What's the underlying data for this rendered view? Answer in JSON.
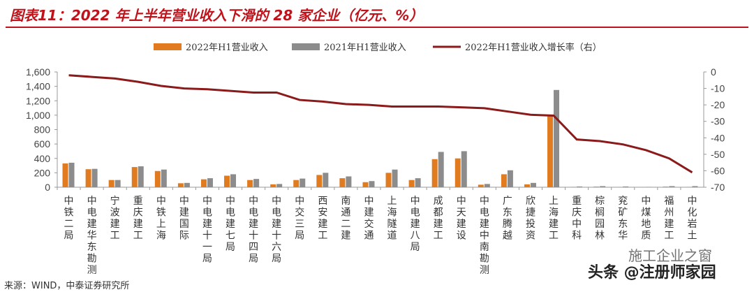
{
  "title": "图表11：2022 年上半年营业收入下滑的 28 家企业（亿元、%）",
  "source": "来源：WIND，中泰证券研究所",
  "watermarks": [
    "施工企业之窗",
    "头条 @注册师家园"
  ],
  "chart_data": {
    "type": "bar+line",
    "categories": [
      "中铁二局",
      "中电建华东勘测",
      "宁波建工",
      "重庆建工",
      "中铁上海",
      "中建国际",
      "中电建十一局",
      "中电建七局",
      "中电建十四局",
      "中电建十六局",
      "中交三局",
      "西安建工",
      "南通二建",
      "中建交通",
      "上海隧道",
      "中电建八局",
      "成都建工",
      "中天建设",
      "中电建中南勘测",
      "广东腾越",
      "欣捷投资",
      "上海建工",
      "重庆中科",
      "棕榈园林",
      "兖矿东华",
      "中煤地质",
      "福州建工",
      "中化岩土"
    ],
    "series": [
      {
        "name": "2022年H1营业收入",
        "type": "bar",
        "axis": "left",
        "color": "#e07b20",
        "values": [
          330,
          250,
          100,
          280,
          225,
          55,
          110,
          160,
          100,
          40,
          100,
          170,
          125,
          70,
          200,
          100,
          390,
          400,
          35,
          180,
          40,
          1000,
          5,
          8,
          3,
          2,
          8,
          5
        ]
      },
      {
        "name": "2021年H1营业收入",
        "type": "bar",
        "axis": "left",
        "color": "#8c8c8c",
        "values": [
          340,
          255,
          100,
          290,
          245,
          60,
          125,
          180,
          115,
          45,
          120,
          200,
          150,
          85,
          245,
          125,
          490,
          500,
          45,
          235,
          60,
          1350,
          10,
          15,
          10,
          5,
          15,
          15
        ]
      },
      {
        "name": "2022年H1营业收入增长率（右）",
        "type": "line",
        "axis": "right",
        "color": "#8b1a1a",
        "values": [
          -2,
          -3,
          -4,
          -6,
          -8.5,
          -10,
          -10.5,
          -11.5,
          -12.5,
          -12.5,
          -17,
          -18,
          -19.5,
          -20,
          -21,
          -21,
          -21,
          -21.5,
          -22,
          -24,
          -26,
          -26.5,
          -41,
          -42,
          -44,
          -47.5,
          -52.5,
          -61
        ]
      }
    ],
    "yleft": {
      "lim": [
        0,
        1600
      ],
      "ticks": [
        "0",
        "200",
        "400",
        "600",
        "800",
        "1,000",
        "1,200",
        "1,400",
        "1,600"
      ]
    },
    "yright": {
      "lim": [
        -70,
        0
      ],
      "ticks": [
        "0",
        "-10",
        "-20",
        "-30",
        "-40",
        "-50",
        "-60",
        "-70"
      ]
    },
    "legend": "top-center",
    "grid": false
  }
}
